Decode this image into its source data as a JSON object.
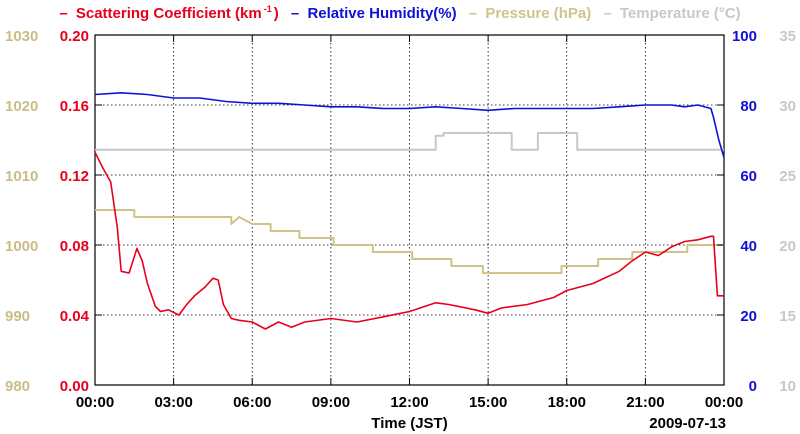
{
  "chart_data": {
    "type": "line",
    "date_label": "2009-07-13",
    "xlabel": "Time (JST)",
    "x_ticks": [
      "00:00",
      "03:00",
      "06:00",
      "09:00",
      "12:00",
      "15:00",
      "18:00",
      "21:00",
      "00:00"
    ],
    "x_range_hours": [
      0,
      24
    ],
    "grid": true,
    "legend": [
      {
        "prefix": "– ",
        "name": "Scattering Coefficient (km",
        "sup": "-1",
        "suffix": ")",
        "color": "#e8001c"
      },
      {
        "prefix": " – ",
        "name": "Relative Humidity(%)",
        "color": "#1010d8"
      },
      {
        "prefix": " – ",
        "name": "Pressure (hPa)",
        "color": "#cfc38a"
      },
      {
        "prefix": " – ",
        "name": "Temperature (°C)",
        "color": "#c8c8c8"
      }
    ],
    "axes": {
      "pressure": {
        "ticks": [
          "1030",
          "1020",
          "1010",
          "1000",
          "990",
          "980"
        ],
        "range": [
          980,
          1030
        ],
        "color": "#c9bd86"
      },
      "scattering": {
        "ticks": [
          "0.20",
          "0.16",
          "0.12",
          "0.08",
          "0.04",
          "0.00"
        ],
        "range": [
          0,
          0.2
        ],
        "color": "#e8001c"
      },
      "humidity": {
        "ticks": [
          "100",
          "80",
          "60",
          "40",
          "20",
          "0"
        ],
        "range": [
          0,
          100
        ],
        "color": "#1010d8"
      },
      "temperature": {
        "ticks": [
          "35",
          "30",
          "25",
          "20",
          "15",
          "10"
        ],
        "range": [
          10,
          35
        ],
        "color": "#c8c8c8"
      }
    },
    "series": [
      {
        "name": "Scattering Coefficient",
        "axis": "scattering",
        "color": "#e8001c",
        "width": 1.6,
        "x": [
          0,
          0.3,
          0.6,
          0.85,
          1.0,
          1.3,
          1.6,
          1.8,
          2.0,
          2.3,
          2.5,
          2.8,
          3.2,
          3.5,
          3.8,
          4.2,
          4.5,
          4.7,
          4.9,
          5.2,
          5.5,
          6.0,
          6.5,
          7.0,
          7.5,
          8.0,
          9.0,
          10.0,
          11.0,
          12.0,
          13.0,
          13.5,
          14.5,
          15.0,
          15.5,
          16.5,
          17.5,
          18.0,
          19.0,
          20.0,
          20.5,
          21.0,
          21.5,
          22.0,
          22.5,
          23.0,
          23.5,
          23.6,
          23.75,
          24.0
        ],
        "y": [
          0.133,
          0.124,
          0.116,
          0.09,
          0.065,
          0.064,
          0.078,
          0.071,
          0.058,
          0.045,
          0.042,
          0.043,
          0.04,
          0.046,
          0.051,
          0.056,
          0.061,
          0.06,
          0.046,
          0.038,
          0.037,
          0.036,
          0.032,
          0.036,
          0.033,
          0.036,
          0.038,
          0.036,
          0.039,
          0.042,
          0.047,
          0.046,
          0.043,
          0.041,
          0.044,
          0.046,
          0.05,
          0.054,
          0.058,
          0.065,
          0.071,
          0.076,
          0.074,
          0.079,
          0.082,
          0.083,
          0.085,
          0.085,
          0.051,
          0.051
        ]
      },
      {
        "name": "Relative Humidity",
        "axis": "humidity",
        "color": "#1010d8",
        "width": 1.6,
        "x": [
          0,
          1,
          2,
          3,
          4,
          5,
          6,
          7,
          8,
          9,
          10,
          11,
          12,
          13,
          14,
          15,
          16,
          17,
          18,
          19,
          20,
          21,
          22,
          22.5,
          23,
          23.5,
          23.6,
          23.8,
          24.0
        ],
        "y": [
          83,
          83.5,
          83,
          82,
          82,
          81,
          80.5,
          80.5,
          80,
          79.5,
          79.5,
          79,
          79,
          79.5,
          79,
          78.5,
          79,
          79,
          79,
          79,
          79.5,
          80,
          80,
          79.5,
          80,
          79,
          76.5,
          70,
          65
        ]
      },
      {
        "name": "Pressure",
        "axis": "pressure",
        "color": "#cfc38a",
        "width": 2,
        "x": [
          0,
          1.5,
          1.5,
          5.2,
          5.2,
          5.5,
          6.0,
          6.7,
          6.7,
          7.8,
          7.8,
          9.1,
          9.1,
          10.6,
          10.6,
          12.1,
          12.1,
          13.6,
          13.6,
          14.8,
          14.8,
          17.8,
          17.8,
          19.2,
          19.2,
          20.5,
          20.5,
          22.6,
          22.6,
          24.0
        ],
        "y": [
          1005,
          1005,
          1004,
          1004,
          1003,
          1004,
          1003,
          1003,
          1002,
          1002,
          1001,
          1001,
          1000,
          1000,
          999,
          999,
          998,
          998,
          997,
          997,
          996,
          996,
          997,
          997,
          998,
          998,
          999,
          999,
          1000,
          1000
        ]
      },
      {
        "name": "Temperature",
        "axis": "temperature",
        "color": "#c8c8c8",
        "width": 2,
        "x": [
          0,
          13.0,
          13.0,
          13.3,
          13.3,
          14.5,
          15.2,
          15.9,
          15.9,
          16.9,
          16.9,
          17.6,
          17.6,
          18.4,
          18.4,
          24.0
        ],
        "y": [
          26.8,
          26.8,
          27.8,
          27.8,
          28.0,
          28.0,
          28.0,
          28.0,
          26.8,
          26.8,
          28.0,
          28.0,
          28.0,
          28.0,
          26.8,
          26.8
        ]
      }
    ]
  }
}
